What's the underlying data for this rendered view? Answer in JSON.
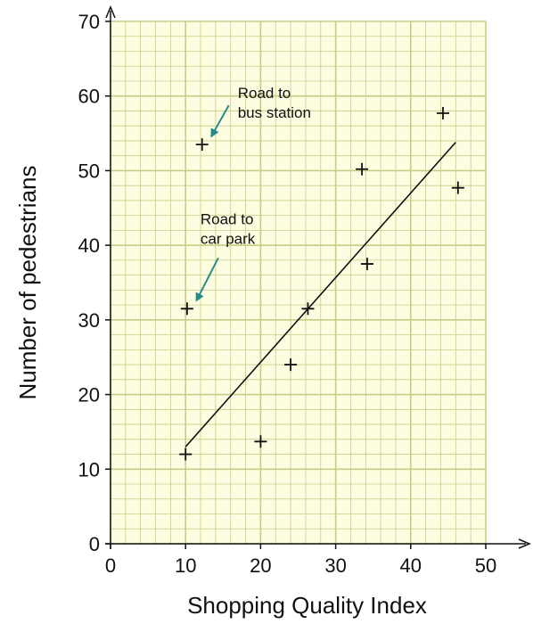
{
  "chart_data": {
    "type": "scatter",
    "xlabel": "Shopping Quality Index",
    "ylabel": "Number of pedestrians",
    "xlim": [
      0,
      50
    ],
    "ylim": [
      0,
      70
    ],
    "xticks": [
      "0",
      "10",
      "20",
      "30",
      "40",
      "50"
    ],
    "yticks": [
      "0",
      "10",
      "20",
      "30",
      "40",
      "50",
      "60",
      "70"
    ],
    "grid": true,
    "grid_color": "#c9cc86",
    "background_color": "#fdfde2",
    "annotation_color": "#2a8a8a",
    "points": [
      {
        "x": 10,
        "y": 12
      },
      {
        "x": 10.2,
        "y": 31.5
      },
      {
        "x": 12.2,
        "y": 53.5
      },
      {
        "x": 20,
        "y": 13.7
      },
      {
        "x": 24,
        "y": 24
      },
      {
        "x": 26.3,
        "y": 31.5
      },
      {
        "x": 33.5,
        "y": 50.2
      },
      {
        "x": 34.2,
        "y": 37.5
      },
      {
        "x": 44.3,
        "y": 57.7
      },
      {
        "x": 46.3,
        "y": 47.7
      }
    ],
    "trendline": {
      "x": [
        10,
        46
      ],
      "y": [
        13,
        53.8
      ]
    },
    "annotations": [
      {
        "text": [
          "Road to",
          "bus station"
        ],
        "point_index": 2
      },
      {
        "text": [
          "Road to",
          "car park"
        ],
        "point_index": 1
      }
    ]
  }
}
